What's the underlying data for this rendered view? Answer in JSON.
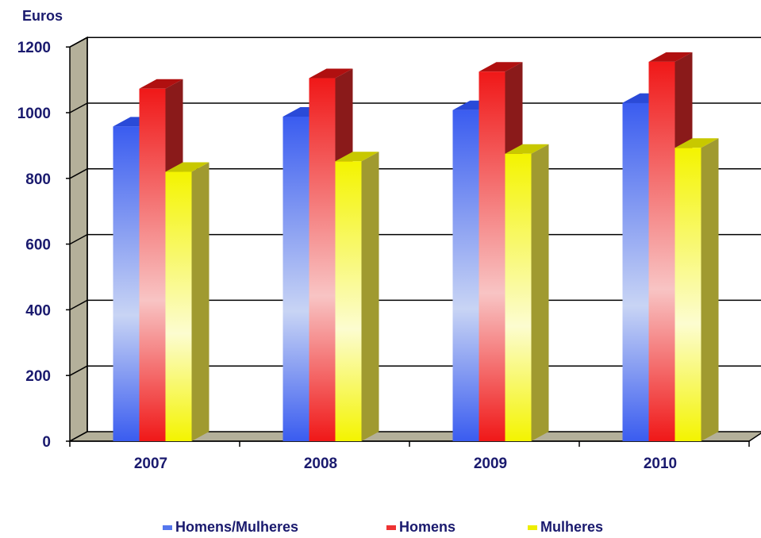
{
  "chart_data": {
    "type": "bar",
    "ylabel": "Euros",
    "xlabel": "",
    "title": "",
    "ylim": [
      0,
      1200
    ],
    "yticks": [
      "0",
      "200",
      "400",
      "600",
      "800",
      "1000",
      "1200"
    ],
    "categories": [
      "2007",
      "2008",
      "2009",
      "2010"
    ],
    "series": [
      {
        "name": "Homens/Mulheres",
        "values": [
          958,
          988,
          1008,
          1030
        ]
      },
      {
        "name": "Homens",
        "values": [
          1073,
          1105,
          1125,
          1155
        ]
      },
      {
        "name": "Mulheres",
        "values": [
          820,
          852,
          875,
          893
        ]
      }
    ],
    "colors": {
      "Homens/Mulheres": "#3355ee",
      "Homens": "#ee1111",
      "Mulheres": "#eeee00"
    },
    "grid": true,
    "legend": "bottom"
  }
}
